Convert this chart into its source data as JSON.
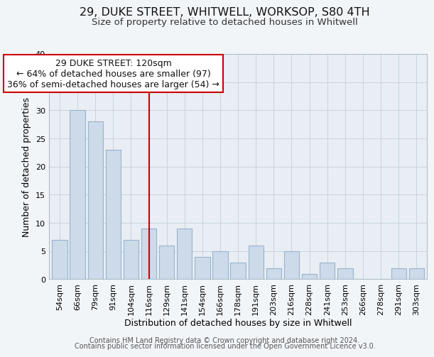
{
  "title": "29, DUKE STREET, WHITWELL, WORKSOP, S80 4TH",
  "subtitle": "Size of property relative to detached houses in Whitwell",
  "xlabel": "Distribution of detached houses by size in Whitwell",
  "ylabel": "Number of detached properties",
  "bar_labels": [
    "54sqm",
    "66sqm",
    "79sqm",
    "91sqm",
    "104sqm",
    "116sqm",
    "129sqm",
    "141sqm",
    "154sqm",
    "166sqm",
    "178sqm",
    "191sqm",
    "203sqm",
    "216sqm",
    "228sqm",
    "241sqm",
    "253sqm",
    "266sqm",
    "278sqm",
    "291sqm",
    "303sqm"
  ],
  "bar_values": [
    7,
    30,
    28,
    23,
    7,
    9,
    6,
    9,
    4,
    5,
    3,
    6,
    2,
    5,
    1,
    3,
    2,
    0,
    0,
    2,
    2
  ],
  "bar_color": "#ccdaea",
  "bar_edge_color": "#9ab4cc",
  "highlight_index": 5,
  "highlight_color": "#cc0000",
  "ylim": [
    0,
    40
  ],
  "yticks": [
    0,
    5,
    10,
    15,
    20,
    25,
    30,
    35,
    40
  ],
  "annotation_title": "29 DUKE STREET: 120sqm",
  "annotation_line1": "← 64% of detached houses are smaller (97)",
  "annotation_line2": "36% of semi-detached houses are larger (54) →",
  "footer1": "Contains HM Land Registry data © Crown copyright and database right 2024.",
  "footer2": "Contains public sector information licensed under the Open Government Licence v3.0.",
  "bg_color": "#f2f5f8",
  "plot_bg_color": "#e8eef4",
  "grid_color": "#c8d4de",
  "title_fontsize": 11.5,
  "subtitle_fontsize": 9.5,
  "axis_label_fontsize": 9,
  "tick_fontsize": 8,
  "annotation_fontsize": 9,
  "footer_fontsize": 7
}
